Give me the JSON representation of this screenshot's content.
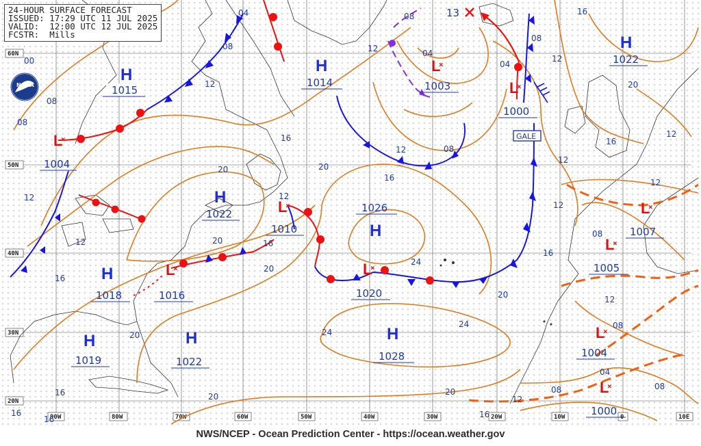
{
  "header": {
    "line1": "24-HOUR SURFACE FORECAST",
    "line2": "ISSUED: 17:29 UTC 11 JUL 2025",
    "line3": "VALID:  12:00 UTC 12 JUL 2025",
    "line4": "FCSTR:  Mills"
  },
  "logo": "NOAA",
  "footer": "NWS/NCEP - Ocean Prediction Center - https://ocean.weather.gov",
  "gale_label": "GALE",
  "colors": {
    "isobar": "#e07a1e",
    "cold_front": "#1515e6",
    "warm_front": "#ee1111",
    "occluded_front": "#8a2be2",
    "trough": "#f06010",
    "high": "#1f2fd0",
    "low": "#dd1111",
    "label_text": "#1f3aa8",
    "land": "#333333",
    "grid": "#555555"
  },
  "lat_labels": [
    "60N",
    "50N",
    "40N",
    "30N",
    "20N"
  ],
  "lon_labels": [
    "90W",
    "80W",
    "70W",
    "60W",
    "50W",
    "40W",
    "30W",
    "20W",
    "10W",
    "0",
    "10E"
  ],
  "pressure_centers": [
    {
      "type": "H",
      "value": "1015"
    },
    {
      "type": "H",
      "value": "1014"
    },
    {
      "type": "H",
      "value": "1022"
    },
    {
      "type": "H",
      "value": "1022"
    },
    {
      "type": "H",
      "value": "1026"
    },
    {
      "type": "H",
      "value": "1018"
    },
    {
      "type": "H",
      "value": "1019"
    },
    {
      "type": "H",
      "value": "1022"
    },
    {
      "type": "H",
      "value": "1028"
    },
    {
      "type": "L",
      "value": "1004"
    },
    {
      "type": "L",
      "value": "1003"
    },
    {
      "type": "L",
      "value": "1000"
    },
    {
      "type": "L",
      "value": "1010"
    },
    {
      "type": "L",
      "value": "1016"
    },
    {
      "type": "L",
      "value": "1020"
    },
    {
      "type": "L",
      "value": "1007"
    },
    {
      "type": "L",
      "value": "1005"
    },
    {
      "type": "L",
      "value": "1004"
    },
    {
      "type": "L",
      "value": "1000"
    }
  ],
  "track_label": "13",
  "isobar_labels": [
    "04",
    "08",
    "12",
    "16",
    "20",
    "24",
    "00"
  ]
}
